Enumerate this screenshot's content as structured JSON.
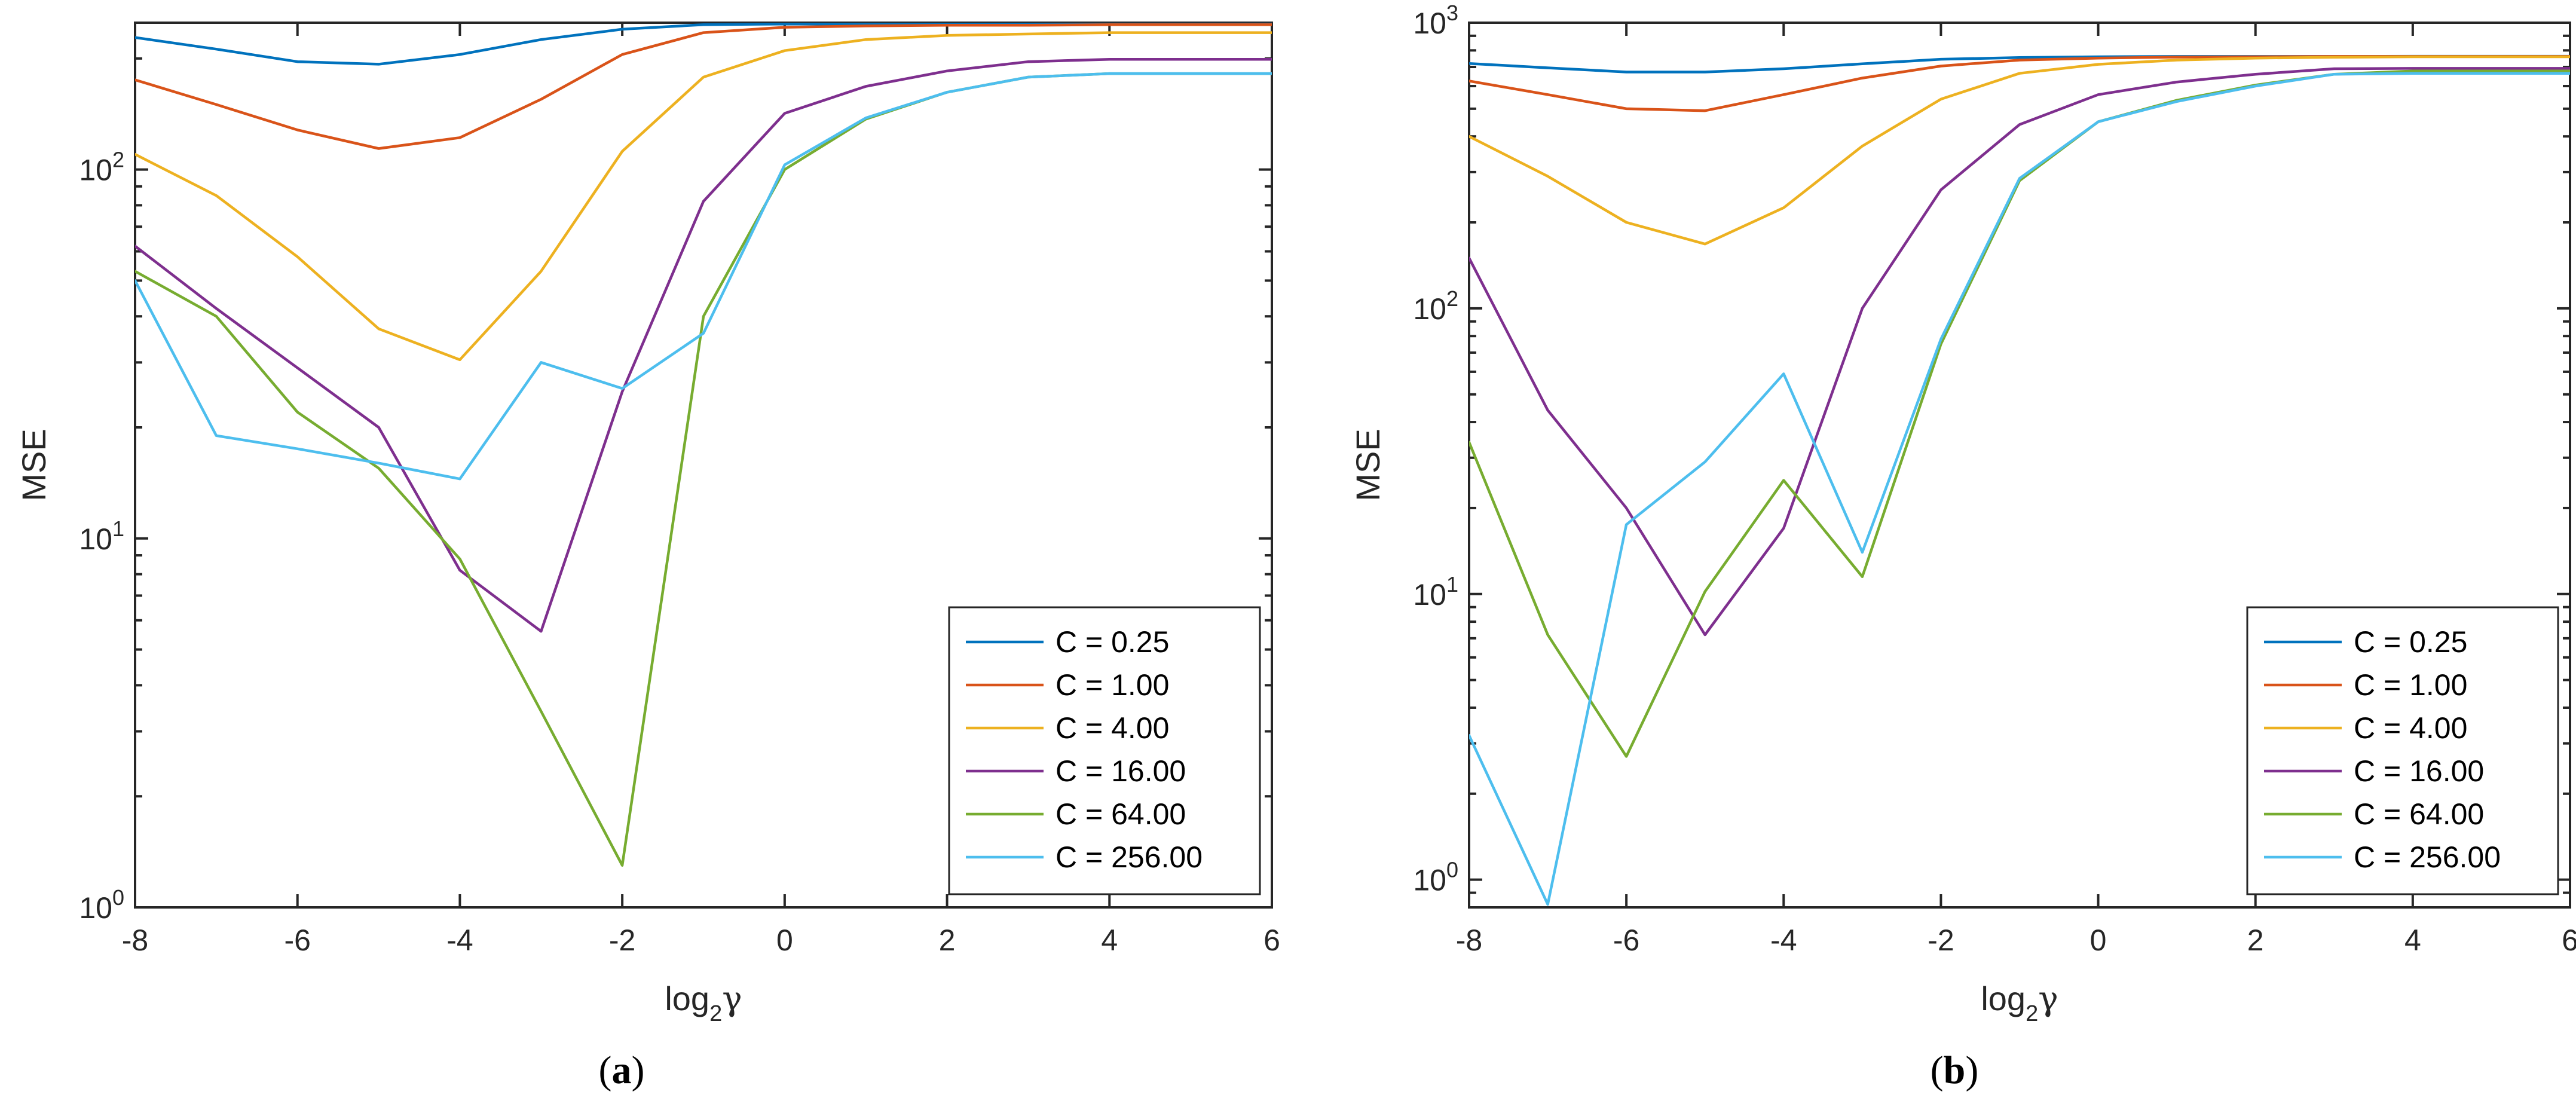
{
  "figure": {
    "panels": [
      {
        "label_open": "(",
        "label_letter": "a",
        "label_close": ")"
      },
      {
        "label_open": "(",
        "label_letter": "b",
        "label_close": ")"
      }
    ]
  },
  "chart_data": [
    {
      "type": "line",
      "title": "",
      "xlabel_main": "log",
      "xlabel_sub": "2",
      "xlabel_greek": "γ",
      "ylabel": "MSE",
      "yscale": "log",
      "xlim": [
        -8,
        6
      ],
      "ylim": [
        1,
        250
      ],
      "x_ticks": [
        -8,
        -6,
        -4,
        -2,
        0,
        2,
        4,
        6
      ],
      "y_ticks": [
        {
          "value": 1,
          "base": "10",
          "exp": "0"
        },
        {
          "value": 10,
          "base": "10",
          "exp": "1"
        },
        {
          "value": 100,
          "base": "10",
          "exp": "2"
        }
      ],
      "legend_position": "bottom-right",
      "x": [
        -8,
        -7,
        -6,
        -5,
        -4,
        -3,
        -2,
        -1,
        0,
        1,
        2,
        3,
        4,
        5,
        6
      ],
      "series": [
        {
          "name": "C = 0.25",
          "color": "#0072BD",
          "values": [
            228,
            212,
            196,
            193,
            205,
            225,
            240,
            247,
            248,
            248,
            248,
            248,
            249,
            249,
            249
          ]
        },
        {
          "name": "C = 1.00",
          "color": "#D95319",
          "values": [
            175,
            150,
            128,
            114,
            122,
            155,
            205,
            235,
            243,
            245,
            246,
            246,
            247,
            247,
            247
          ]
        },
        {
          "name": "C = 4.00",
          "color": "#EDB120",
          "values": [
            110,
            85,
            58,
            37,
            30.5,
            53,
            112,
            178,
            210,
            225,
            231,
            233,
            235,
            235,
            235
          ]
        },
        {
          "name": "C = 16.00",
          "color": "#7E2F8E",
          "values": [
            62,
            42,
            29,
            20,
            8.2,
            5.6,
            25,
            82,
            142,
            168,
            185,
            196,
            199,
            199,
            199
          ]
        },
        {
          "name": "C = 64.00",
          "color": "#77AC30",
          "values": [
            53,
            40,
            22,
            15.5,
            8.8,
            3.4,
            1.3,
            40,
            100,
            137,
            162,
            178,
            182,
            182,
            182
          ]
        },
        {
          "name": "C = 256.00",
          "color": "#4DBEEE",
          "values": [
            50,
            19,
            17.5,
            16,
            14.5,
            30,
            25.5,
            36,
            103,
            138,
            162,
            178,
            182,
            182,
            182
          ]
        }
      ]
    },
    {
      "type": "line",
      "title": "",
      "xlabel_main": "log",
      "xlabel_sub": "2",
      "xlabel_greek": "γ",
      "ylabel": "MSE",
      "yscale": "log",
      "xlim": [
        -8,
        6
      ],
      "ylim": [
        0.8,
        1000
      ],
      "x_ticks": [
        -8,
        -6,
        -4,
        -2,
        0,
        2,
        4,
        6
      ],
      "y_ticks": [
        {
          "value": 1,
          "base": "10",
          "exp": "0"
        },
        {
          "value": 10,
          "base": "10",
          "exp": "1"
        },
        {
          "value": 100,
          "base": "10",
          "exp": "2"
        },
        {
          "value": 1000,
          "base": "10",
          "exp": "3"
        }
      ],
      "legend_position": "bottom-right",
      "x": [
        -8,
        -7,
        -6,
        -5,
        -4,
        -3,
        -2,
        -1,
        0,
        1,
        2,
        3,
        4,
        5,
        6
      ],
      "series": [
        {
          "name": "C = 0.25",
          "color": "#0072BD",
          "values": [
            720,
            695,
            672,
            672,
            690,
            718,
            745,
            755,
            760,
            762,
            762,
            762,
            763,
            763,
            763
          ]
        },
        {
          "name": "C = 1.00",
          "color": "#D95319",
          "values": [
            625,
            560,
            500,
            492,
            560,
            640,
            705,
            740,
            752,
            758,
            760,
            762,
            762,
            762,
            762
          ]
        },
        {
          "name": "C = 4.00",
          "color": "#EDB120",
          "values": [
            400,
            290,
            200,
            168,
            225,
            370,
            540,
            665,
            715,
            740,
            752,
            757,
            760,
            760,
            760
          ]
        },
        {
          "name": "C = 16.00",
          "color": "#7E2F8E",
          "values": [
            150,
            44,
            20,
            7.2,
            17,
            100,
            260,
            440,
            560,
            620,
            660,
            690,
            692,
            692,
            692
          ]
        },
        {
          "name": "C = 64.00",
          "color": "#77AC30",
          "values": [
            34,
            7.2,
            2.7,
            10.2,
            25,
            11.5,
            75,
            280,
            450,
            535,
            605,
            660,
            678,
            678,
            678
          ]
        },
        {
          "name": "C = 256.00",
          "color": "#4DBEEE",
          "values": [
            3.2,
            0.82,
            17.5,
            29,
            59,
            14,
            78,
            285,
            450,
            530,
            600,
            660,
            665,
            665,
            665
          ]
        }
      ]
    }
  ]
}
